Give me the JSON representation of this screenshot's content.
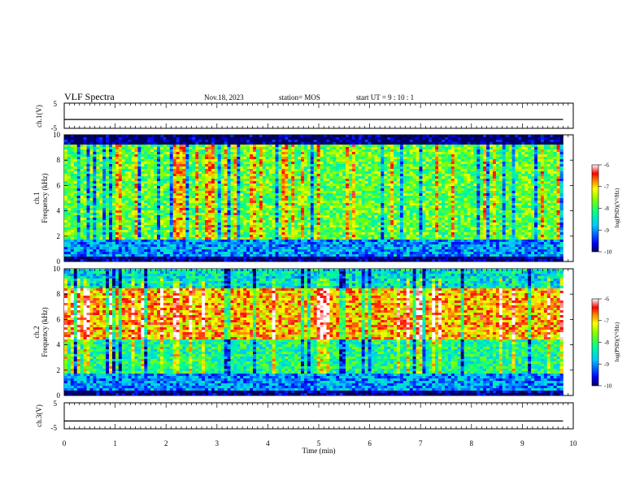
{
  "header": {
    "title": "VLF Spectra",
    "date": "Nov.18, 2023",
    "station": "station= MOS",
    "start": "start  UT  =   9  : 10 : 1"
  },
  "chart_data": [
    {
      "type": "line",
      "panel": "ch1_voltage",
      "ylabel": "ch.1(V)",
      "ylim": [
        -5,
        5
      ],
      "yticks": [
        "5",
        "-5"
      ],
      "xlim": [
        0,
        10
      ],
      "series": [
        {
          "x": [
            0,
            9.8
          ],
          "values": [
            -1.5,
            -1.5
          ]
        }
      ]
    },
    {
      "type": "heatmap",
      "panel": "ch1_spectrogram",
      "ylabel": "ch.1",
      "ylabel2": "Frequency (kHz)",
      "ylim": [
        0,
        10
      ],
      "yticks": [
        "0",
        "2",
        "4",
        "6",
        "8",
        "10"
      ],
      "xlim": [
        0,
        10
      ],
      "data_xmax": 9.8,
      "colorbar": {
        "label": "log(PSD)(V²/Hz)",
        "range": [
          -10,
          -6
        ],
        "ticks": [
          "-6",
          "-7",
          "-8",
          "-9",
          "-10"
        ]
      },
      "bands_khz": [
        {
          "from": 0,
          "to": 0.4,
          "level": -10
        },
        {
          "from": 0.4,
          "to": 1.8,
          "level": -9
        },
        {
          "from": 1.8,
          "to": 9.3,
          "level": -7.8
        },
        {
          "from": 9.3,
          "to": 10,
          "level": -10
        }
      ]
    },
    {
      "type": "heatmap",
      "panel": "ch2_spectrogram",
      "ylabel": "ch.2",
      "ylabel2": "Frequency (kHz)",
      "ylim": [
        0,
        10
      ],
      "yticks": [
        "0",
        "2",
        "4",
        "6",
        "8",
        "10"
      ],
      "xlim": [
        0,
        10
      ],
      "data_xmax": 9.8,
      "colorbar": {
        "label": "log(PSD)(V²/Hz)",
        "range": [
          -10,
          -6
        ],
        "ticks": [
          "-6",
          "-7",
          "-8",
          "-9",
          "-10"
        ]
      },
      "bands_khz": [
        {
          "from": 0,
          "to": 0.4,
          "level": -10
        },
        {
          "from": 0.4,
          "to": 1.8,
          "level": -9
        },
        {
          "from": 1.8,
          "to": 4.5,
          "level": -8.2
        },
        {
          "from": 4.5,
          "to": 8.5,
          "level": -6.9
        },
        {
          "from": 8.5,
          "to": 10,
          "level": -8.5
        }
      ]
    },
    {
      "type": "line",
      "panel": "ch3_voltage",
      "ylabel": "ch.3(V)",
      "ylim": [
        -5,
        5
      ],
      "yticks": [
        "5",
        "-5"
      ],
      "xlim": [
        0,
        10
      ],
      "xlabel": "Time (min)",
      "xticks": [
        "0",
        "1",
        "2",
        "3",
        "4",
        "5",
        "6",
        "7",
        "8",
        "9",
        "10"
      ],
      "series": [
        {
          "x": [
            0,
            9.8
          ],
          "values": [
            -2,
            -2
          ]
        }
      ]
    }
  ]
}
